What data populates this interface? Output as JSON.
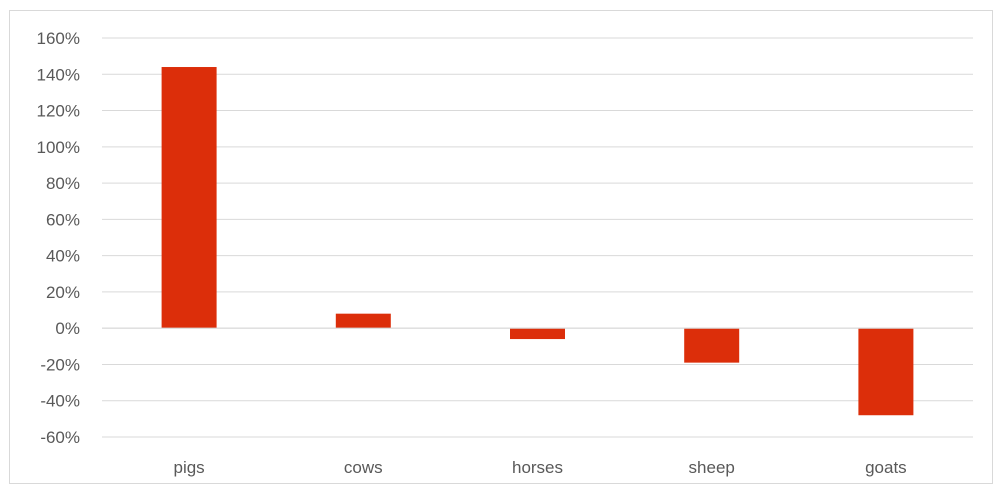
{
  "chart_data": {
    "type": "bar",
    "title": "",
    "xlabel": "",
    "ylabel": "",
    "categories": [
      "pigs",
      "cows",
      "horses",
      "sheep",
      "goats"
    ],
    "values": [
      144,
      8,
      -6,
      -19,
      -48
    ],
    "value_format": "percent",
    "ylim": [
      -60,
      160
    ],
    "yticks": [
      160,
      140,
      120,
      100,
      80,
      60,
      40,
      20,
      0,
      -20,
      -40,
      -60
    ],
    "ytick_labels": [
      "160%",
      "140%",
      "120%",
      "100%",
      "80%",
      "60%",
      "40%",
      "20%",
      "0%",
      "-20%",
      "-40%",
      "-60%"
    ],
    "grid": true,
    "legend": "none",
    "colors": {
      "bar": "#dc2e0a",
      "grid": "#d9d9d9",
      "text": "#595959",
      "border": "#d9d9d9"
    }
  }
}
